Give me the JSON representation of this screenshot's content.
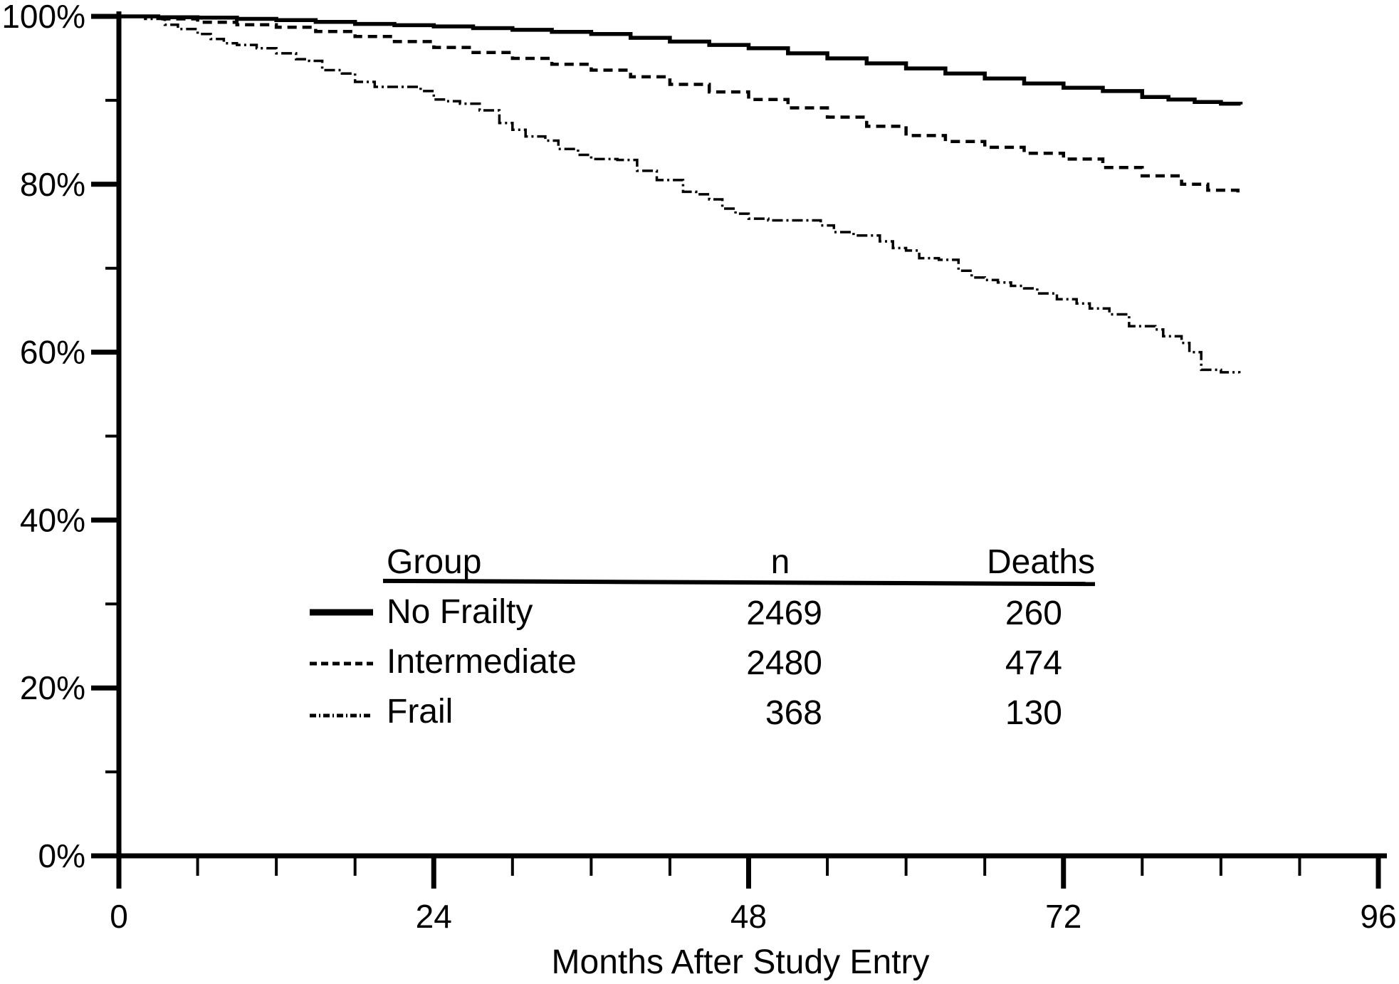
{
  "figure": {
    "background": "#ffffff",
    "ink": "#000000"
  },
  "chart_data": {
    "type": "line",
    "subtype": "kaplan-meier-step-survival",
    "title": "",
    "xlabel": "Months After Study Entry",
    "ylabel": "",
    "xlim": [
      0,
      96
    ],
    "ylim": [
      0,
      100
    ],
    "grid": false,
    "legend_position": "inside lower-center, table with columns Group / n / Deaths",
    "x_axis": {
      "title": "Months After Study Entry",
      "major_ticks": [
        {
          "value": 0,
          "label": "0"
        },
        {
          "value": 24,
          "label": "24"
        },
        {
          "value": 48,
          "label": "48"
        },
        {
          "value": 72,
          "label": "72"
        },
        {
          "value": 96,
          "label": "96"
        }
      ],
      "minor_ticks": [
        6,
        12,
        18,
        30,
        36,
        42,
        54,
        60,
        66,
        78,
        84,
        90
      ]
    },
    "y_axis": {
      "major_ticks": [
        {
          "value": 100,
          "label": "100%"
        },
        {
          "value": 80,
          "label": "80%"
        },
        {
          "value": 60,
          "label": "60%"
        },
        {
          "value": 40,
          "label": "40%"
        },
        {
          "value": 20,
          "label": "20%"
        },
        {
          "value": 0,
          "label": "0%"
        }
      ],
      "minor_ticks": [
        90,
        70,
        50,
        30,
        10
      ]
    },
    "series": [
      {
        "name": "No Frailty",
        "style": "solid",
        "n": 2469,
        "deaths": 260,
        "points": [
          [
            0,
            100
          ],
          [
            3,
            99.9
          ],
          [
            6,
            99.85
          ],
          [
            9,
            99.7
          ],
          [
            12,
            99.55
          ],
          [
            15,
            99.35
          ],
          [
            18,
            99.1
          ],
          [
            21,
            98.95
          ],
          [
            24,
            98.8
          ],
          [
            27,
            98.6
          ],
          [
            30,
            98.4
          ],
          [
            33,
            98.15
          ],
          [
            36,
            97.9
          ],
          [
            39,
            97.45
          ],
          [
            42,
            97.0
          ],
          [
            45,
            96.6
          ],
          [
            48,
            96.2
          ],
          [
            51,
            95.6
          ],
          [
            54,
            95.0
          ],
          [
            57,
            94.4
          ],
          [
            60,
            93.8
          ],
          [
            63,
            93.2
          ],
          [
            66,
            92.6
          ],
          [
            69,
            92.0
          ],
          [
            72,
            91.5
          ],
          [
            75,
            91.1
          ],
          [
            78,
            90.4
          ],
          [
            80,
            90.1
          ],
          [
            82,
            89.8
          ],
          [
            84,
            89.6
          ],
          [
            85.5,
            89.5
          ]
        ]
      },
      {
        "name": "Intermediate",
        "style": "dashed",
        "n": 2480,
        "deaths": 474,
        "points": [
          [
            0,
            100
          ],
          [
            3,
            99.7
          ],
          [
            6,
            99.3
          ],
          [
            9,
            99.0
          ],
          [
            12,
            98.7
          ],
          [
            15,
            98.2
          ],
          [
            18,
            97.6
          ],
          [
            21,
            97.0
          ],
          [
            24,
            96.3
          ],
          [
            27,
            95.7
          ],
          [
            30,
            95.0
          ],
          [
            33,
            94.3
          ],
          [
            36,
            93.6
          ],
          [
            39,
            92.8
          ],
          [
            42,
            91.9
          ],
          [
            45,
            91.0
          ],
          [
            48,
            90.1
          ],
          [
            51,
            89.1
          ],
          [
            54,
            88.0
          ],
          [
            57,
            86.9
          ],
          [
            60,
            85.8
          ],
          [
            63,
            85.1
          ],
          [
            66,
            84.4
          ],
          [
            69,
            83.7
          ],
          [
            72,
            83.0
          ],
          [
            75,
            82.0
          ],
          [
            78,
            81.0
          ],
          [
            81,
            80.0
          ],
          [
            83,
            79.3
          ],
          [
            85.3,
            78.5
          ]
        ]
      },
      {
        "name": "Frail",
        "style": "dash-dot",
        "n": 368,
        "deaths": 130,
        "points": [
          [
            0,
            100
          ],
          [
            2,
            99.7
          ],
          [
            3.5,
            99.0
          ],
          [
            4.5,
            98.5
          ],
          [
            6,
            97.9
          ],
          [
            7,
            97.3
          ],
          [
            8,
            96.8
          ],
          [
            9,
            96.6
          ],
          [
            10.5,
            96.2
          ],
          [
            12,
            95.6
          ],
          [
            13.5,
            94.9
          ],
          [
            14.5,
            94.7
          ],
          [
            15.5,
            93.6
          ],
          [
            17,
            93.2
          ],
          [
            18,
            92.2
          ],
          [
            19.5,
            91.6
          ],
          [
            23,
            91.1
          ],
          [
            24,
            90.1
          ],
          [
            25,
            89.9
          ],
          [
            26,
            89.6
          ],
          [
            27.5,
            88.8
          ],
          [
            29,
            87.3
          ],
          [
            30,
            86.5
          ],
          [
            31,
            85.7
          ],
          [
            32.5,
            85.2
          ],
          [
            33.5,
            84.2
          ],
          [
            35,
            83.5
          ],
          [
            36,
            83.0
          ],
          [
            38,
            82.9
          ],
          [
            39.5,
            81.6
          ],
          [
            41,
            80.5
          ],
          [
            43,
            79.1
          ],
          [
            44,
            78.8
          ],
          [
            45,
            78.2
          ],
          [
            46,
            77.1
          ],
          [
            47,
            76.5
          ],
          [
            48,
            75.9
          ],
          [
            49.5,
            75.7
          ],
          [
            52.5,
            75.7
          ],
          [
            53.5,
            75.1
          ],
          [
            54.5,
            74.3
          ],
          [
            56,
            73.9
          ],
          [
            58,
            73.2
          ],
          [
            59,
            72.4
          ],
          [
            60,
            72.1
          ],
          [
            61,
            71.2
          ],
          [
            62.5,
            71.0
          ],
          [
            64,
            69.7
          ],
          [
            65,
            68.9
          ],
          [
            66,
            68.6
          ],
          [
            67,
            68.3
          ],
          [
            68,
            67.9
          ],
          [
            69,
            67.6
          ],
          [
            70,
            67.0
          ],
          [
            71.5,
            66.3
          ],
          [
            73,
            65.8
          ],
          [
            74,
            65.2
          ],
          [
            75.5,
            64.5
          ],
          [
            77,
            63.1
          ],
          [
            79,
            62.7
          ],
          [
            79.6,
            61.9
          ],
          [
            81,
            61.1
          ],
          [
            81.6,
            60.0
          ],
          [
            82.5,
            57.9
          ],
          [
            84,
            57.6
          ],
          [
            85.4,
            57.5
          ]
        ]
      }
    ]
  },
  "legend": {
    "headers": {
      "group": "Group",
      "n": "n",
      "deaths": "Deaths"
    },
    "rows": [
      {
        "group": "No Frailty",
        "n": "2469",
        "deaths": "260",
        "style": "solid"
      },
      {
        "group": "Intermediate",
        "n": "2480",
        "deaths": "474",
        "style": "dashed"
      },
      {
        "group": "Frail",
        "n": "368",
        "deaths": "130",
        "style": "dash-dot"
      }
    ]
  },
  "axis_titles": {
    "x": "Months After Study Entry"
  }
}
